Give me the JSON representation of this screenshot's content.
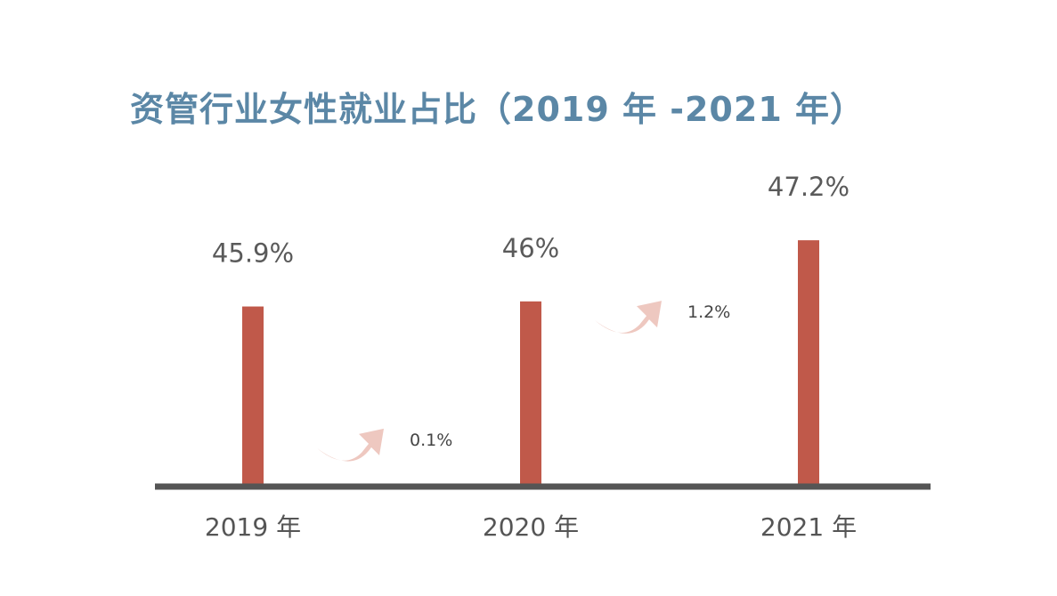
{
  "chart_data": {
    "type": "bar",
    "title": "资管行业女性就业占比（2019 年 -2021 年）",
    "categories": [
      "2019 年",
      "2020 年",
      "2021 年"
    ],
    "values": [
      45.9,
      46,
      47.2
    ],
    "value_labels": [
      "45.9%",
      "46%",
      "47.2%"
    ],
    "annotations": [
      {
        "between": [
          0,
          1
        ],
        "text": "0.1%"
      },
      {
        "between": [
          1,
          2
        ],
        "text": "1.2%"
      }
    ],
    "xlabel": "",
    "ylabel": "",
    "ylim": [
      42.4,
      47.9
    ],
    "grid": false,
    "legend": "none"
  },
  "colors": {
    "title": "#5b87a6",
    "bar": "#c0594a",
    "axis": "#555555",
    "arrow": "#eec8c0",
    "label": "#5a5a5a"
  }
}
